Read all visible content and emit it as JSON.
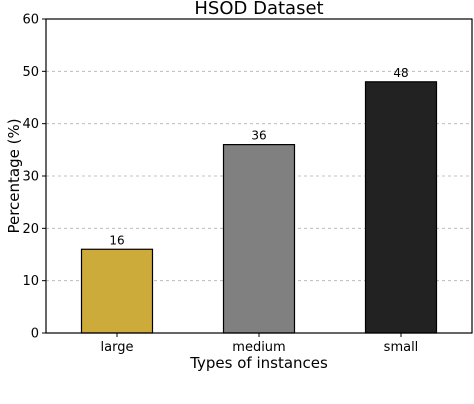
{
  "chart_data": {
    "type": "bar",
    "title": "HSOD Dataset",
    "xlabel": "Types of instances",
    "ylabel": "Percentage (%)",
    "categories": [
      "large",
      "medium",
      "small"
    ],
    "values": [
      16,
      36,
      48
    ],
    "data_labels": [
      "16",
      "36",
      "48"
    ],
    "colors": [
      "#cdab3a",
      "#808080",
      "#222222"
    ],
    "ylim": [
      0,
      60
    ],
    "yticks": [
      0,
      10,
      20,
      30,
      40,
      50,
      60
    ],
    "grid": "y-dashed"
  }
}
